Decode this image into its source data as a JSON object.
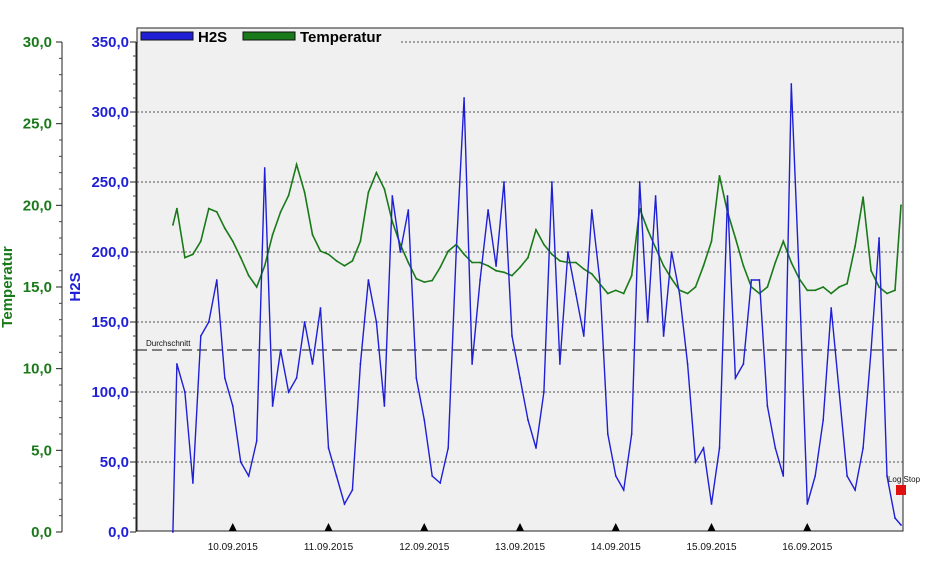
{
  "colors": {
    "h2s": "#1f1fd6",
    "temperatur": "#1a7a1a",
    "plot_bg": "#f0f0f0",
    "grid": "#555555",
    "log_stop_marker": "#e01010"
  },
  "chart_data": {
    "type": "line",
    "legend": {
      "position": "top-left",
      "items": [
        "H2S",
        "Temperatur"
      ]
    },
    "grid": true,
    "x_axis": {
      "type": "date",
      "min": "2015-09-09T00:00",
      "max": "2015-09-17T00:00",
      "tick_labels": [
        "10.09.2015",
        "11.09.2015",
        "12.09.2015",
        "13.09.2015",
        "14.09.2015",
        "15.09.2015",
        "16.09.2015"
      ]
    },
    "y_axes": [
      {
        "id": "temperatur",
        "label": "Temperatur",
        "min": 0,
        "max": 30,
        "tick_labels": [
          "0,0",
          "5,0",
          "10,0",
          "15,0",
          "20,0",
          "25,0",
          "30,0"
        ]
      },
      {
        "id": "h2s",
        "label": "H2S",
        "min": 0,
        "max": 350,
        "tick_labels": [
          "0,0",
          "50,0",
          "100,0",
          "150,0",
          "200,0",
          "250,0",
          "300,0",
          "350,0"
        ]
      }
    ],
    "series": [
      {
        "name": "H2S",
        "axis": "h2s",
        "x": [
          "2015-09-09T09:00",
          "2015-09-09T10:00",
          "2015-09-09T12:00",
          "2015-09-09T14:00",
          "2015-09-09T16:00",
          "2015-09-09T18:00",
          "2015-09-09T20:00",
          "2015-09-09T22:00",
          "2015-09-10T00:00",
          "2015-09-10T02:00",
          "2015-09-10T04:00",
          "2015-09-10T06:00",
          "2015-09-10T08:00",
          "2015-09-10T10:00",
          "2015-09-10T12:00",
          "2015-09-10T14:00",
          "2015-09-10T16:00",
          "2015-09-10T18:00",
          "2015-09-10T20:00",
          "2015-09-10T22:00",
          "2015-09-11T00:00",
          "2015-09-11T02:00",
          "2015-09-11T04:00",
          "2015-09-11T06:00",
          "2015-09-11T08:00",
          "2015-09-11T10:00",
          "2015-09-11T12:00",
          "2015-09-11T14:00",
          "2015-09-11T16:00",
          "2015-09-11T18:00",
          "2015-09-11T20:00",
          "2015-09-11T22:00",
          "2015-09-12T00:00",
          "2015-09-12T02:00",
          "2015-09-12T04:00",
          "2015-09-12T06:00",
          "2015-09-12T08:00",
          "2015-09-12T10:00",
          "2015-09-12T12:00",
          "2015-09-12T14:00",
          "2015-09-12T16:00",
          "2015-09-12T18:00",
          "2015-09-12T20:00",
          "2015-09-12T22:00",
          "2015-09-13T00:00",
          "2015-09-13T02:00",
          "2015-09-13T04:00",
          "2015-09-13T06:00",
          "2015-09-13T08:00",
          "2015-09-13T10:00",
          "2015-09-13T12:00",
          "2015-09-13T14:00",
          "2015-09-13T16:00",
          "2015-09-13T18:00",
          "2015-09-13T20:00",
          "2015-09-13T22:00",
          "2015-09-14T00:00",
          "2015-09-14T02:00",
          "2015-09-14T04:00",
          "2015-09-14T06:00",
          "2015-09-14T08:00",
          "2015-09-14T10:00",
          "2015-09-14T12:00",
          "2015-09-14T14:00",
          "2015-09-14T16:00",
          "2015-09-14T18:00",
          "2015-09-14T20:00",
          "2015-09-14T22:00",
          "2015-09-15T00:00",
          "2015-09-15T02:00",
          "2015-09-15T04:00",
          "2015-09-15T06:00",
          "2015-09-15T08:00",
          "2015-09-15T10:00",
          "2015-09-15T12:00",
          "2015-09-15T14:00",
          "2015-09-15T16:00",
          "2015-09-15T18:00",
          "2015-09-15T20:00",
          "2015-09-15T22:00",
          "2015-09-16T00:00",
          "2015-09-16T02:00",
          "2015-09-16T04:00",
          "2015-09-16T06:00",
          "2015-09-16T08:00",
          "2015-09-16T10:00",
          "2015-09-16T12:00",
          "2015-09-16T14:00",
          "2015-09-16T16:00",
          "2015-09-16T18:00",
          "2015-09-16T20:00",
          "2015-09-16T22:00",
          "2015-09-16T23:30"
        ],
        "y": [
          0,
          120,
          100,
          35,
          140,
          150,
          180,
          110,
          90,
          50,
          40,
          65,
          260,
          90,
          130,
          100,
          110,
          150,
          120,
          160,
          60,
          40,
          20,
          30,
          120,
          180,
          150,
          90,
          240,
          200,
          230,
          110,
          80,
          40,
          35,
          60,
          200,
          310,
          120,
          180,
          230,
          190,
          250,
          140,
          110,
          80,
          60,
          100,
          250,
          120,
          200,
          170,
          140,
          230,
          180,
          70,
          40,
          30,
          70,
          250,
          150,
          240,
          140,
          200,
          170,
          120,
          50,
          60,
          20,
          60,
          240,
          110,
          120,
          180,
          180,
          90,
          60,
          40,
          320,
          180,
          20,
          40,
          80,
          160,
          100,
          40,
          30,
          60,
          130,
          210,
          40,
          10,
          5
        ]
      },
      {
        "name": "Temperatur",
        "axis": "temperatur",
        "x": [
          "2015-09-09T09:00",
          "2015-09-09T10:00",
          "2015-09-09T12:00",
          "2015-09-09T14:00",
          "2015-09-09T16:00",
          "2015-09-09T18:00",
          "2015-09-09T20:00",
          "2015-09-09T22:00",
          "2015-09-10T00:00",
          "2015-09-10T02:00",
          "2015-09-10T04:00",
          "2015-09-10T06:00",
          "2015-09-10T08:00",
          "2015-09-10T10:00",
          "2015-09-10T12:00",
          "2015-09-10T14:00",
          "2015-09-10T16:00",
          "2015-09-10T18:00",
          "2015-09-10T20:00",
          "2015-09-10T22:00",
          "2015-09-11T00:00",
          "2015-09-11T02:00",
          "2015-09-11T04:00",
          "2015-09-11T06:00",
          "2015-09-11T08:00",
          "2015-09-11T10:00",
          "2015-09-11T12:00",
          "2015-09-11T14:00",
          "2015-09-11T16:00",
          "2015-09-11T18:00",
          "2015-09-11T20:00",
          "2015-09-11T22:00",
          "2015-09-12T00:00",
          "2015-09-12T02:00",
          "2015-09-12T04:00",
          "2015-09-12T06:00",
          "2015-09-12T08:00",
          "2015-09-12T10:00",
          "2015-09-12T12:00",
          "2015-09-12T14:00",
          "2015-09-12T16:00",
          "2015-09-12T18:00",
          "2015-09-12T20:00",
          "2015-09-12T22:00",
          "2015-09-13T00:00",
          "2015-09-13T02:00",
          "2015-09-13T04:00",
          "2015-09-13T06:00",
          "2015-09-13T08:00",
          "2015-09-13T10:00",
          "2015-09-13T12:00",
          "2015-09-13T14:00",
          "2015-09-13T16:00",
          "2015-09-13T18:00",
          "2015-09-13T20:00",
          "2015-09-13T22:00",
          "2015-09-14T00:00",
          "2015-09-14T02:00",
          "2015-09-14T04:00",
          "2015-09-14T06:00",
          "2015-09-14T08:00",
          "2015-09-14T10:00",
          "2015-09-14T12:00",
          "2015-09-14T14:00",
          "2015-09-14T16:00",
          "2015-09-14T18:00",
          "2015-09-14T20:00",
          "2015-09-14T22:00",
          "2015-09-15T00:00",
          "2015-09-15T02:00",
          "2015-09-15T04:00",
          "2015-09-15T06:00",
          "2015-09-15T08:00",
          "2015-09-15T10:00",
          "2015-09-15T12:00",
          "2015-09-15T14:00",
          "2015-09-15T16:00",
          "2015-09-15T18:00",
          "2015-09-15T20:00",
          "2015-09-15T22:00",
          "2015-09-16T00:00",
          "2015-09-16T02:00",
          "2015-09-16T04:00",
          "2015-09-16T06:00",
          "2015-09-16T08:00",
          "2015-09-16T10:00",
          "2015-09-16T12:00",
          "2015-09-16T14:00",
          "2015-09-16T16:00",
          "2015-09-16T18:00",
          "2015-09-16T20:00",
          "2015-09-16T22:00",
          "2015-09-16T23:30"
        ],
        "y": [
          18.8,
          19.8,
          16.8,
          17.0,
          17.8,
          19.8,
          19.6,
          18.6,
          17.8,
          16.8,
          15.7,
          15.0,
          16.3,
          18.2,
          19.6,
          20.6,
          22.5,
          20.8,
          18.2,
          17.2,
          17.0,
          16.6,
          16.3,
          16.6,
          17.8,
          20.8,
          22.0,
          21.0,
          19.0,
          17.6,
          16.5,
          15.5,
          15.3,
          15.4,
          16.2,
          17.2,
          17.6,
          17.0,
          16.5,
          16.5,
          16.3,
          16.0,
          15.9,
          15.7,
          16.2,
          16.8,
          18.5,
          17.6,
          17.0,
          16.6,
          16.5,
          16.5,
          16.1,
          15.8,
          15.2,
          14.6,
          14.8,
          14.6,
          15.7,
          19.8,
          18.5,
          17.4,
          16.3,
          15.5,
          14.8,
          14.6,
          15.0,
          16.3,
          17.8,
          21.8,
          19.6,
          18.0,
          16.3,
          15.0,
          14.6,
          15.0,
          16.5,
          17.8,
          16.5,
          15.5,
          14.8,
          14.8,
          15.0,
          14.6,
          15.0,
          15.2,
          17.5,
          20.5,
          16.0,
          15.0,
          14.6,
          14.8,
          20.0
        ]
      }
    ],
    "reference_line": {
      "label": "Durchschnitt",
      "value": 130,
      "axis": "h2s"
    },
    "annotations": [
      {
        "text": "Log Stop",
        "x": "2015-09-16T23:30",
        "y": 30,
        "axis": "h2s"
      }
    ]
  }
}
